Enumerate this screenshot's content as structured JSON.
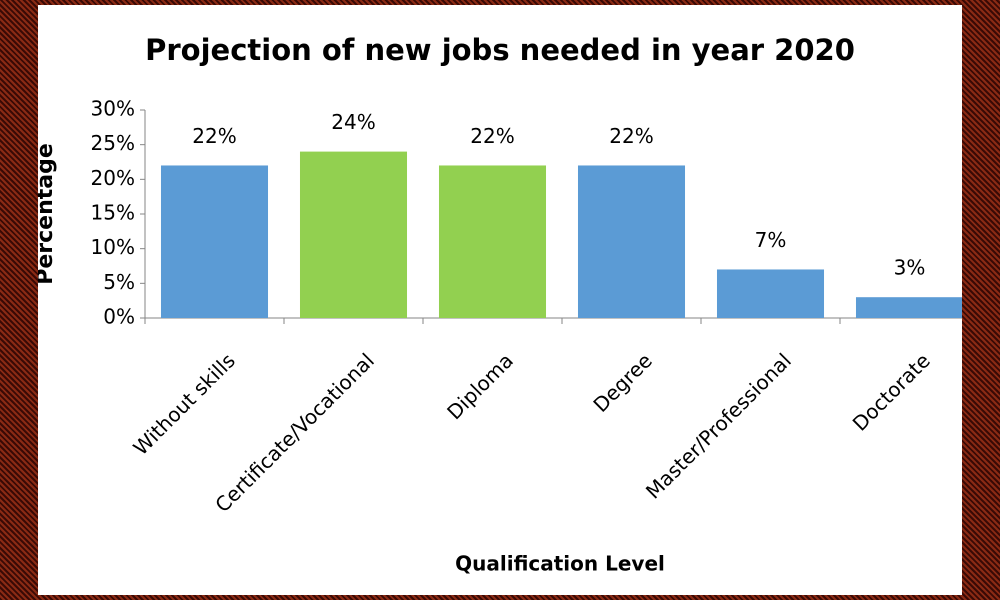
{
  "chart_data": {
    "type": "bar",
    "title": "Projection of new jobs needed in year 2020",
    "x_label": "Qualification Level",
    "y_label": "Percentage",
    "categories": [
      "Without skills",
      "Certificate/Vocational",
      "Diploma",
      "Degree",
      "Master/Professional",
      "Doctorate"
    ],
    "values": [
      22,
      24,
      22,
      22,
      7,
      3
    ],
    "value_labels": [
      "22%",
      "24%",
      "22%",
      "22%",
      "7%",
      "3%"
    ],
    "colors": [
      "#5b9bd5",
      "#92d050",
      "#92d050",
      "#5b9bd5",
      "#5b9bd5",
      "#5b9bd5"
    ],
    "ylim": [
      0,
      30
    ],
    "yticks": [
      {
        "value": 0,
        "label": "0%"
      },
      {
        "value": 5,
        "label": "5%"
      },
      {
        "value": 10,
        "label": "10%"
      },
      {
        "value": 15,
        "label": "15%"
      },
      {
        "value": 20,
        "label": "20%"
      },
      {
        "value": 25,
        "label": "25%"
      },
      {
        "value": 30,
        "label": "30%"
      }
    ],
    "grid": false
  }
}
